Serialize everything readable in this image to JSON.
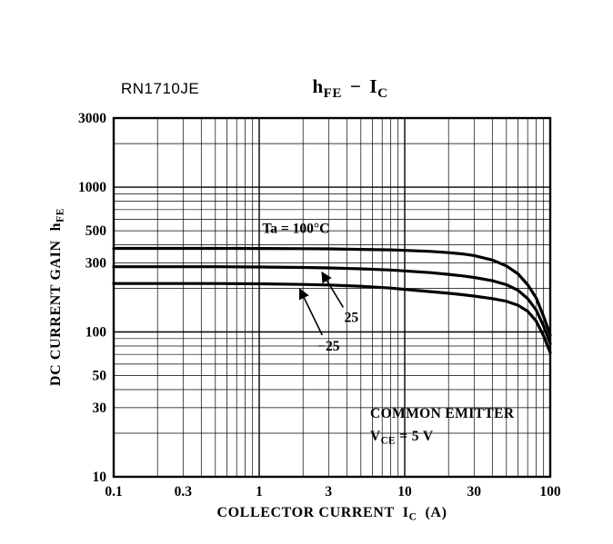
{
  "page": {
    "part_number": "RN1710JE"
  },
  "labels": {
    "title_parts": {
      "sym1": "h",
      "sub1": "FE",
      "dash": "−",
      "sym2": "I",
      "sub2": "C"
    },
    "y_axis_parts": {
      "text": "DC CURRENT GAIN",
      "sym": "h",
      "sub": "FE"
    },
    "x_axis_parts": {
      "text": "COLLECTOR CURRENT",
      "sym": "I",
      "sub": "C",
      "unit": "(A)"
    }
  },
  "chart_data": {
    "type": "line",
    "title": "hFE − IC",
    "xlabel": "COLLECTOR CURRENT IC (A)",
    "ylabel": "DC CURRENT GAIN hFE",
    "x_scale": "log",
    "y_scale": "log",
    "xlim": [
      0.1,
      100
    ],
    "ylim": [
      10,
      3000
    ],
    "grid": "full log grid, major and minor lines",
    "legend_position": "none (inline curve labels)",
    "x_ticks": [
      {
        "v": 0.1,
        "label": "0.1"
      },
      {
        "v": 0.3,
        "label": "0.3"
      },
      {
        "v": 1,
        "label": "1"
      },
      {
        "v": 3,
        "label": "3"
      },
      {
        "v": 10,
        "label": "10"
      },
      {
        "v": 30,
        "label": "30"
      },
      {
        "v": 100,
        "label": "100"
      }
    ],
    "y_ticks": [
      {
        "v": 10,
        "label": "10"
      },
      {
        "v": 30,
        "label": "30"
      },
      {
        "v": 50,
        "label": "50"
      },
      {
        "v": 100,
        "label": "100"
      },
      {
        "v": 300,
        "label": "300"
      },
      {
        "v": 500,
        "label": "500"
      },
      {
        "v": 1000,
        "label": "1000"
      },
      {
        "v": 3000,
        "label": "3000"
      }
    ],
    "series": [
      {
        "name": "Ta = 100°C",
        "points": [
          [
            0.1,
            378
          ],
          [
            0.5,
            378
          ],
          [
            1,
            377
          ],
          [
            2,
            376
          ],
          [
            3,
            375
          ],
          [
            5,
            372
          ],
          [
            8,
            369
          ],
          [
            10,
            366
          ],
          [
            15,
            360
          ],
          [
            20,
            353
          ],
          [
            25,
            346
          ],
          [
            30,
            337
          ],
          [
            40,
            314
          ],
          [
            50,
            286
          ],
          [
            60,
            252
          ],
          [
            70,
            212
          ],
          [
            80,
            172
          ],
          [
            90,
            128
          ],
          [
            100,
            95
          ]
        ]
      },
      {
        "name": "Ta = 25°C",
        "points": [
          [
            0.1,
            282
          ],
          [
            0.5,
            282
          ],
          [
            1,
            281
          ],
          [
            2,
            279
          ],
          [
            3,
            277
          ],
          [
            5,
            273
          ],
          [
            8,
            268
          ],
          [
            10,
            264
          ],
          [
            15,
            257
          ],
          [
            20,
            250
          ],
          [
            25,
            244
          ],
          [
            30,
            238
          ],
          [
            40,
            226
          ],
          [
            50,
            212
          ],
          [
            60,
            194
          ],
          [
            70,
            170
          ],
          [
            80,
            142
          ],
          [
            90,
            110
          ],
          [
            100,
            83
          ]
        ]
      },
      {
        "name": "Ta = −25°C",
        "points": [
          [
            0.1,
            216
          ],
          [
            0.5,
            216
          ],
          [
            1,
            215
          ],
          [
            2,
            213
          ],
          [
            3,
            211
          ],
          [
            5,
            207
          ],
          [
            8,
            201
          ],
          [
            10,
            197
          ],
          [
            15,
            190
          ],
          [
            20,
            185
          ],
          [
            25,
            181
          ],
          [
            30,
            177
          ],
          [
            40,
            170
          ],
          [
            50,
            163
          ],
          [
            60,
            153
          ],
          [
            70,
            139
          ],
          [
            80,
            119
          ],
          [
            90,
            94
          ],
          [
            100,
            72
          ]
        ]
      }
    ],
    "annotations": {
      "curve_label_top": {
        "text": "Ta = 100°C",
        "x": 1.05,
        "y": 520
      },
      "curve_label_mid": {
        "text": "25",
        "x": 4.3,
        "y": 126,
        "tip": [
          2.7,
          258
        ]
      },
      "curve_label_bot": {
        "text": "−25",
        "x": 3.0,
        "y": 80,
        "tip": [
          1.9,
          198
        ]
      },
      "condition": {
        "line1": "COMMON EMITTER",
        "sym": "V",
        "sub": "CE",
        "rest": "= 5 V"
      }
    }
  }
}
